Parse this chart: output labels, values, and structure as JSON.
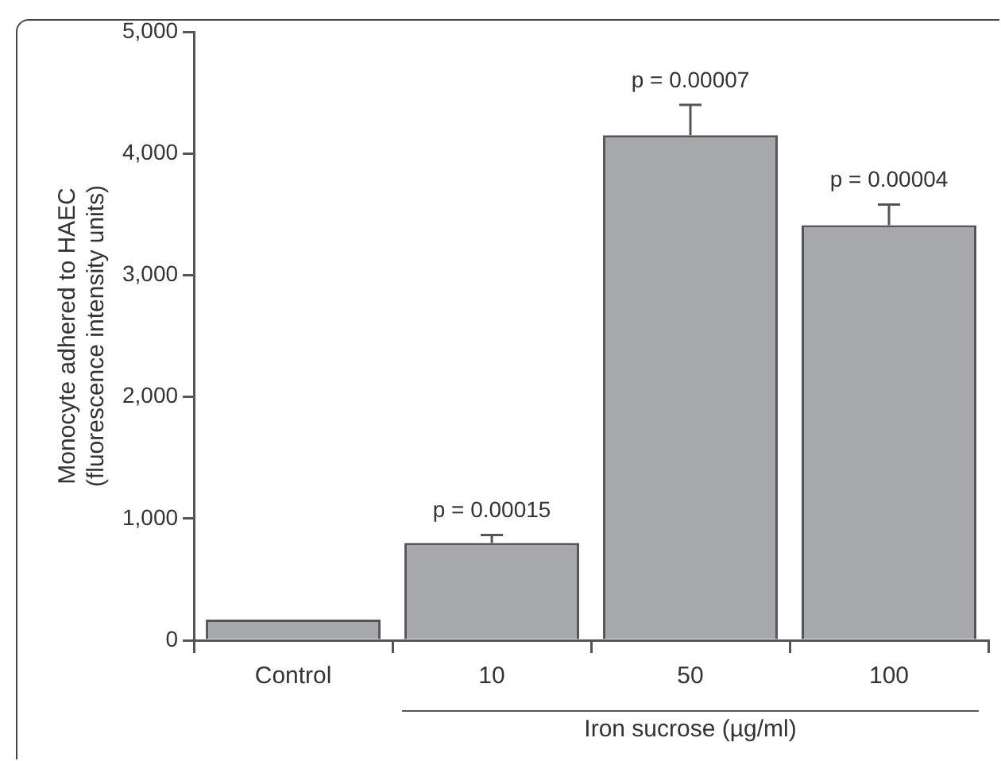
{
  "chart_data": {
    "type": "bar",
    "ylabel": "Monocyte adhered to HAEC\n(fluorescence intensity units)",
    "xlabel": "Iron sucrose (µg/ml)",
    "categories": [
      "Control",
      "10",
      "50",
      "100"
    ],
    "values": [
      170,
      800,
      4150,
      3410
    ],
    "errors": [
      null,
      [
        800,
        865
      ],
      [
        4150,
        4400
      ],
      [
        3410,
        3580
      ]
    ],
    "color": "#a7a8ab",
    "ylim": [
      0,
      5000
    ],
    "yticks": [
      {
        "value": 0,
        "label": "0"
      },
      {
        "value": 1000,
        "label": "1,000"
      },
      {
        "value": 2000,
        "label": "2,000"
      },
      {
        "value": 3000,
        "label": "3,000"
      },
      {
        "value": 4000,
        "label": "4,000"
      },
      {
        "value": 5000,
        "label": "5,000"
      }
    ],
    "grid": false,
    "legend": false,
    "annotations": [
      {
        "text": "p = 0.00015",
        "x": "10",
        "y": 800
      },
      {
        "text": "p = 0.00007",
        "x": "50",
        "y": 4150
      },
      {
        "text": "p = 0.00004",
        "x": "100",
        "y": 3410
      }
    ]
  }
}
